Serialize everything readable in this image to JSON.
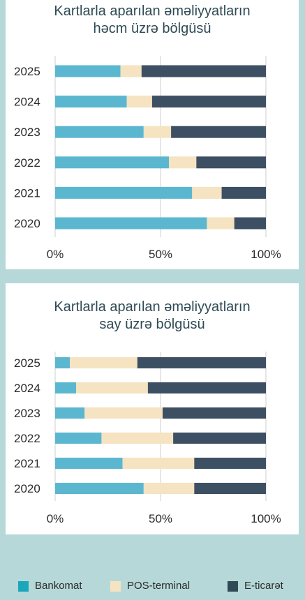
{
  "colors": {
    "background": "#b7d8d9",
    "panel": "#ffffff",
    "bankomat": "#5bb7d0",
    "pos_terminal": "#f5e3c1",
    "e_ticaret": "#3d4f63",
    "title_text": "#2e4a55",
    "gridline": "#cfcfcf"
  },
  "legend": {
    "items": [
      {
        "label": "Bankomat",
        "color": "#1aa7b9"
      },
      {
        "label": "POS-terminal",
        "color": "#f5e3c1"
      },
      {
        "label": "E-ticarət",
        "color": "#2f4a55"
      }
    ]
  },
  "chart_data": [
    {
      "type": "bar",
      "orientation": "horizontal",
      "stacked": true,
      "title_line1": "Kartlarla aparılan əməliyyatların",
      "title_line2": "həcm üzrə bölgüsü",
      "categories": [
        "2025",
        "2024",
        "2023",
        "2022",
        "2021",
        "2020"
      ],
      "series": [
        {
          "name": "Bankomat",
          "values": [
            31,
            34,
            42,
            54,
            65,
            72
          ]
        },
        {
          "name": "POS-terminal",
          "values": [
            10,
            12,
            13,
            13,
            14,
            13
          ]
        },
        {
          "name": "E-ticarət",
          "values": [
            59,
            54,
            45,
            33,
            21,
            15
          ]
        }
      ],
      "xlim": [
        0,
        100
      ],
      "xticks": [
        "0%",
        "50%",
        "100%"
      ],
      "grid": true,
      "legend_position": "bottom"
    },
    {
      "type": "bar",
      "orientation": "horizontal",
      "stacked": true,
      "title_line1": "Kartlarla aparılan əməliyyatların",
      "title_line2": "say üzrə bölgüsü",
      "categories": [
        "2025",
        "2024",
        "2023",
        "2022",
        "2021",
        "2020"
      ],
      "series": [
        {
          "name": "Bankomat",
          "values": [
            7,
            10,
            14,
            22,
            32,
            42
          ]
        },
        {
          "name": "POS-terminal",
          "values": [
            32,
            34,
            37,
            34,
            34,
            24
          ]
        },
        {
          "name": "E-ticarət",
          "values": [
            61,
            56,
            49,
            44,
            34,
            34
          ]
        }
      ],
      "xlim": [
        0,
        100
      ],
      "xticks": [
        "0%",
        "50%",
        "100%"
      ],
      "grid": true,
      "legend_position": "bottom"
    }
  ]
}
